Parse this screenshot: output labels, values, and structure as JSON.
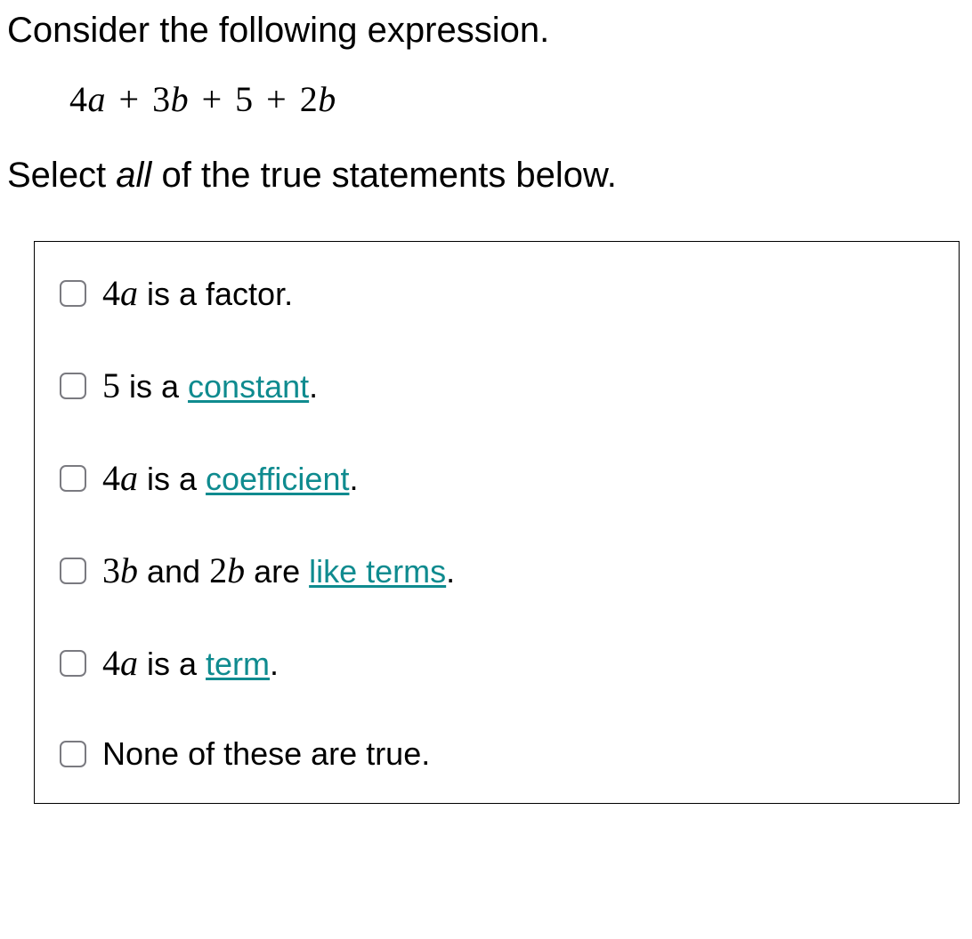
{
  "question": {
    "prompt": "Consider the following expression.",
    "expression_parts": {
      "t1_coef": "4",
      "t1_var": "a",
      "op1": "+",
      "t2_coef": "3",
      "t2_var": "b",
      "op2": "+",
      "t3": "5",
      "op3": "+",
      "t4_coef": "2",
      "t4_var": "b"
    },
    "select_prefix": "Select ",
    "select_all": "all",
    "select_suffix": " of the true statements below."
  },
  "options": [
    {
      "segments": [
        {
          "type": "math",
          "coef": "4",
          "var": "a"
        },
        {
          "type": "text",
          "text": " is a factor."
        }
      ]
    },
    {
      "segments": [
        {
          "type": "math",
          "coef": "5",
          "var": ""
        },
        {
          "type": "text",
          "text": " is a "
        },
        {
          "type": "link",
          "text": "constant"
        },
        {
          "type": "text",
          "text": "."
        }
      ]
    },
    {
      "segments": [
        {
          "type": "math",
          "coef": "4",
          "var": "a"
        },
        {
          "type": "text",
          "text": " is a "
        },
        {
          "type": "link",
          "text": "coefficient"
        },
        {
          "type": "text",
          "text": "."
        }
      ]
    },
    {
      "segments": [
        {
          "type": "math",
          "coef": "3",
          "var": "b"
        },
        {
          "type": "text",
          "text": " and "
        },
        {
          "type": "math",
          "coef": "2",
          "var": "b"
        },
        {
          "type": "text",
          "text": " are "
        },
        {
          "type": "link",
          "text": "like terms"
        },
        {
          "type": "text",
          "text": "."
        }
      ]
    },
    {
      "segments": [
        {
          "type": "math",
          "coef": "4",
          "var": "a"
        },
        {
          "type": "text",
          "text": " is a "
        },
        {
          "type": "link",
          "text": "term"
        },
        {
          "type": "text",
          "text": "."
        }
      ]
    },
    {
      "segments": [
        {
          "type": "text",
          "text": "None of these are true."
        }
      ]
    }
  ],
  "styles": {
    "link_color": "#0f8b8f",
    "checkbox_border": "#7a7a80",
    "text_color": "#000000",
    "background": "#ffffff"
  }
}
